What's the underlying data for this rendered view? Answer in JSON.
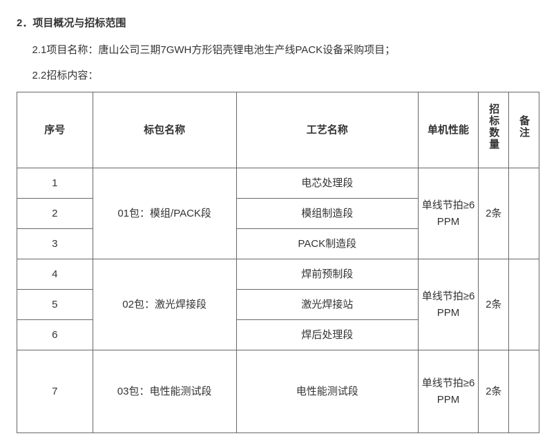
{
  "section": {
    "number": "2．",
    "title": "项目概况与招标范围"
  },
  "sub1": "2.1项目名称：唐山公司三期7GWH方形铝壳锂电池生产线PACK设备采购项目；",
  "sub2": "2.2招标内容：",
  "table": {
    "headers": {
      "seq": "序号",
      "pkg": "标包名称",
      "proc": "工艺名称",
      "perf": "单机性能",
      "qty": "招标数量",
      "note": "备注"
    },
    "groups": [
      {
        "pkg": "01包：模组/PACK段",
        "perf": "单线节拍≥6PPM",
        "qty": "2条",
        "rows": [
          {
            "seq": "1",
            "proc": "电芯处理段"
          },
          {
            "seq": "2",
            "proc": "模组制造段"
          },
          {
            "seq": "3",
            "proc": "PACK制造段"
          }
        ]
      },
      {
        "pkg": "02包：激光焊接段",
        "perf": "单线节拍≥6PPM",
        "qty": "2条",
        "rows": [
          {
            "seq": "4",
            "proc": "焊前预制段"
          },
          {
            "seq": "5",
            "proc": "激光焊接站"
          },
          {
            "seq": "6",
            "proc": "焊后处理段"
          }
        ]
      },
      {
        "pkg": "03包：电性能测试段",
        "perf": "单线节拍≥6PPM",
        "qty": "2条",
        "rows": [
          {
            "seq": "7",
            "proc": "电性能测试段"
          }
        ]
      }
    ]
  }
}
